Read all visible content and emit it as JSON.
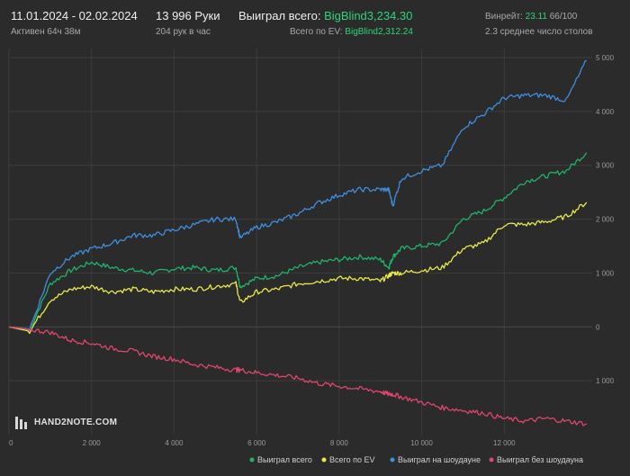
{
  "header": {
    "date_range": "11.01.2024 - 02.02.2024",
    "active_time": "Активен 64ч 38м",
    "hands": "13 996 Руки",
    "hands_per_hour": "204 рук в час",
    "won_total_label": "Выиграл всего:",
    "won_total_value": "BigBlind3,234.30",
    "ev_total_label": "Всего по EV:",
    "ev_total_value": "BigBlind2,312.24",
    "winrate_label": "Винрейт:",
    "winrate_value": "23.11",
    "winrate_suffix": "66/100",
    "avg_tables": "2.3 среднее число столов"
  },
  "logo": {
    "text": "HAND2NOTE.COM",
    "icon": "hand2note-logo-icon"
  },
  "colors": {
    "background": "#2b2b2b",
    "won_total": "#1fb36b",
    "ev_total": "#e8e84a",
    "showdown": "#3d8fe0",
    "non_showdown": "#e0456e",
    "grid": "#3c3c3c"
  },
  "chart_data": {
    "type": "line",
    "title": "",
    "xlabel": "",
    "ylabel": "",
    "xlim": [
      0,
      14000
    ],
    "ylim": [
      -2000,
      5000
    ],
    "x_ticks": [
      0,
      2000,
      4000,
      6000,
      8000,
      10000,
      12000
    ],
    "x_tick_labels": [
      "0",
      "2 000",
      "4 000",
      "6 000",
      "8 000",
      "10 000",
      "12 000"
    ],
    "y_ticks": [
      -1000,
      0,
      1000,
      2000,
      3000,
      4000,
      5000
    ],
    "y_tick_labels": [
      "1 000",
      "0",
      "1 000",
      "2 000",
      "3 000",
      "4 000",
      "5 000"
    ],
    "grid": true,
    "legend_position": "bottom-right",
    "x": [
      0,
      500,
      1000,
      1500,
      2000,
      2500,
      3000,
      3500,
      4000,
      4500,
      5000,
      5500,
      5600,
      6000,
      6500,
      7000,
      7500,
      8000,
      8500,
      9000,
      9200,
      9300,
      9500,
      10000,
      10500,
      11000,
      11500,
      12000,
      12500,
      13000,
      13500,
      13996
    ],
    "series": [
      {
        "name": "Выиграл всего",
        "color": "#1fb36b",
        "values": [
          0,
          -50,
          800,
          1050,
          1200,
          1100,
          1050,
          1000,
          1080,
          1100,
          1050,
          1100,
          750,
          900,
          950,
          1100,
          1200,
          1250,
          1300,
          1250,
          1100,
          1300,
          1450,
          1500,
          1550,
          2000,
          2150,
          2400,
          2700,
          2800,
          2900,
          3234
        ]
      },
      {
        "name": "Всего по EV",
        "color": "#e8e84a",
        "values": [
          0,
          -80,
          500,
          700,
          750,
          650,
          700,
          650,
          700,
          700,
          750,
          800,
          450,
          650,
          700,
          800,
          850,
          900,
          900,
          850,
          950,
          1000,
          1000,
          1050,
          1100,
          1450,
          1550,
          1900,
          1900,
          1950,
          2050,
          2312
        ]
      },
      {
        "name": "Выиграл на шоудауне",
        "color": "#3d8fe0",
        "values": [
          0,
          -40,
          1000,
          1300,
          1450,
          1550,
          1700,
          1700,
          1800,
          1900,
          2000,
          2000,
          1650,
          1850,
          1950,
          2100,
          2300,
          2450,
          2550,
          2550,
          2550,
          2250,
          2750,
          2900,
          3000,
          3700,
          3950,
          4250,
          4300,
          4300,
          4200,
          4950
        ]
      },
      {
        "name": "Выиграл без шоудауна",
        "color": "#e0456e",
        "values": [
          0,
          -50,
          -100,
          -250,
          -300,
          -400,
          -450,
          -550,
          -600,
          -700,
          -750,
          -800,
          -800,
          -850,
          -900,
          -950,
          -1050,
          -1100,
          -1150,
          -1200,
          -1250,
          -1250,
          -1300,
          -1400,
          -1500,
          -1550,
          -1600,
          -1700,
          -1750,
          -1700,
          -1750,
          -1800
        ]
      }
    ]
  }
}
